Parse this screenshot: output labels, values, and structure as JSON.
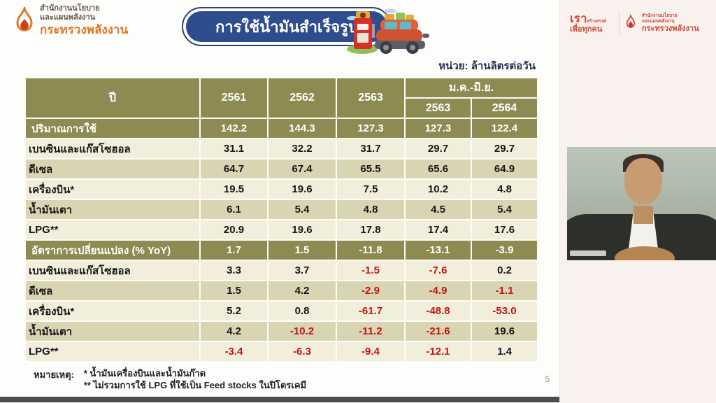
{
  "slide": {
    "org_logo": {
      "line1": "สำนักงานนโยบาย",
      "line2": "และแผนพลังงาน",
      "line3": "กระทรวงพลังงาน"
    },
    "title": "การใช้น้ำมันสำเร็จรูป",
    "unit_label": "หน่วย: ล้านลิตรต่อวัน",
    "page_number": "5",
    "notes": {
      "heading": "หมายเหตุ:",
      "items": [
        "* น้ำมันเครื่องบินและน้ำมันก๊าด",
        "** ไม่รวมการใช้ LPG ที่ใช้เป็น Feed stocks ในปิโตรเคมี"
      ]
    }
  },
  "table": {
    "header": {
      "col_year": "ปี",
      "years": [
        "2561",
        "2562",
        "2563"
      ],
      "span_label": "ม.ค.-มิ.ย.",
      "span_years": [
        "2563",
        "2564"
      ]
    },
    "rows": [
      {
        "label": "ปริมาณการใช้",
        "type": "section",
        "values": [
          "142.2",
          "144.3",
          "127.3",
          "127.3",
          "122.4"
        ]
      },
      {
        "label": "เบนซินและแก๊สโซฮอล",
        "type": "data",
        "values": [
          "31.1",
          "32.2",
          "31.7",
          "29.7",
          "29.7"
        ]
      },
      {
        "label": "ดีเซล",
        "type": "data",
        "values": [
          "64.7",
          "67.4",
          "65.5",
          "65.6",
          "64.9"
        ]
      },
      {
        "label": "เครื่องบิน*",
        "type": "data",
        "values": [
          "19.5",
          "19.6",
          "7.5",
          "10.2",
          "4.8"
        ]
      },
      {
        "label": "น้ำมันเตา",
        "type": "data",
        "values": [
          "6.1",
          "5.4",
          "4.8",
          "4.5",
          "5.4"
        ]
      },
      {
        "label": "LPG**",
        "type": "data",
        "values": [
          "20.9",
          "19.6",
          "17.8",
          "17.4",
          "17.6"
        ]
      },
      {
        "label": "อัตราการเปลี่ยนแปลง (% YoY)",
        "type": "section",
        "values": [
          "1.7",
          "1.5",
          "-11.8",
          "-13.1",
          "-3.9"
        ]
      },
      {
        "label": "เบนซินและแก๊สโซฮอล",
        "type": "data",
        "values": [
          "3.3",
          "3.7",
          "-1.5",
          "-7.6",
          "0.2"
        ]
      },
      {
        "label": "ดีเซล",
        "type": "data",
        "values": [
          "1.5",
          "4.2",
          "-2.9",
          "-4.9",
          "-1.1"
        ]
      },
      {
        "label": "เครื่องบิน*",
        "type": "data",
        "values": [
          "5.2",
          "0.8",
          "-61.7",
          "-48.8",
          "-53.0"
        ]
      },
      {
        "label": "น้ำมันเตา",
        "type": "data",
        "values": [
          "4.2",
          "-10.2",
          "-11.2",
          "-21.6",
          "19.6"
        ]
      },
      {
        "label": "LPG**",
        "type": "data",
        "values": [
          "-3.4",
          "-6.3",
          "-9.4",
          "-12.1",
          "1.4"
        ]
      }
    ]
  },
  "sidebar": {
    "brand": {
      "word_main": "เรา",
      "word_small": "สร้างสรรค์",
      "word_bottom": "เพื่อทุกคน"
    },
    "ministry": {
      "line1": "สำนักงานนโยบาย",
      "line2": "และแผนพลังงาน",
      "line3": "กระทรวงพลังงาน"
    }
  },
  "colors": {
    "table_header_olive": "#8d8b52",
    "row_light": "#f2eedc",
    "row_dark": "#d9d5b3",
    "negative_red": "#c41414",
    "banner_blue": "#2e4d8f",
    "brand_red": "#d14a37",
    "flame_orange": "#e07b28",
    "panel_background": "#f8f1ee",
    "bottom_bar_gray": "#4d4d4d"
  }
}
